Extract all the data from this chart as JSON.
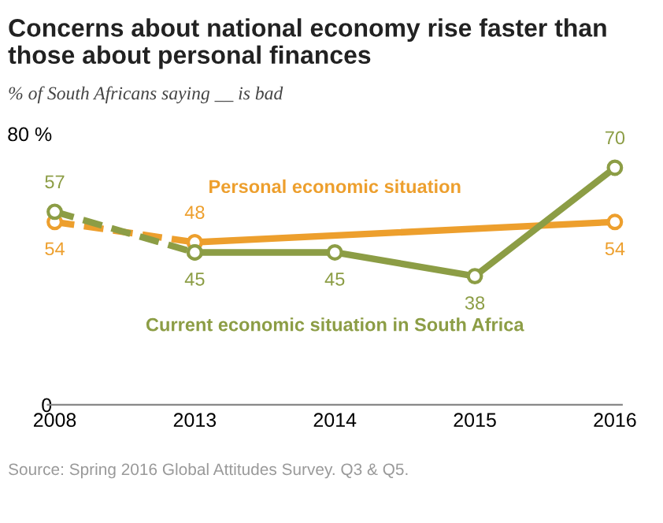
{
  "chart_data": {
    "type": "line",
    "title": "Concerns about national economy rise faster than\nthose about personal finances",
    "subtitle": "% of South Africans saying __ is bad",
    "categories": [
      "2008",
      "2013",
      "2014",
      "2015",
      "2016"
    ],
    "ylim": [
      0,
      80
    ],
    "yticks": [
      0,
      {
        "value": 80,
        "label": "80 %"
      }
    ],
    "grid": false,
    "legend": false,
    "marker": "circle",
    "series": [
      {
        "color": "#ed9f2d",
        "line_style": "dashed",
        "values": [
          54,
          48,
          null,
          null,
          null
        ],
        "value_labels": [
          "54",
          null,
          null,
          null,
          null
        ]
      },
      {
        "name": "Personal economic situation",
        "color": "#ed9f2d",
        "line_style": "solid",
        "values": [
          null,
          48,
          null,
          null,
          54
        ],
        "value_labels": [
          null,
          "48",
          null,
          null,
          "54"
        ]
      },
      {
        "color": "#8c9d45",
        "line_style": "dashed",
        "values": [
          57,
          45,
          null,
          null,
          null
        ],
        "value_labels": [
          "57",
          null,
          null,
          null,
          null
        ]
      },
      {
        "name": "Current economic situation in South Africa",
        "color": "#8c9d45",
        "line_style": "solid",
        "values": [
          null,
          45,
          45,
          38,
          70
        ],
        "value_labels": [
          null,
          "45",
          "45",
          "38",
          "70"
        ]
      }
    ],
    "annotations": [
      "Source: Spring 2016 Global Attitudes Survey. Q3 & Q5."
    ]
  }
}
